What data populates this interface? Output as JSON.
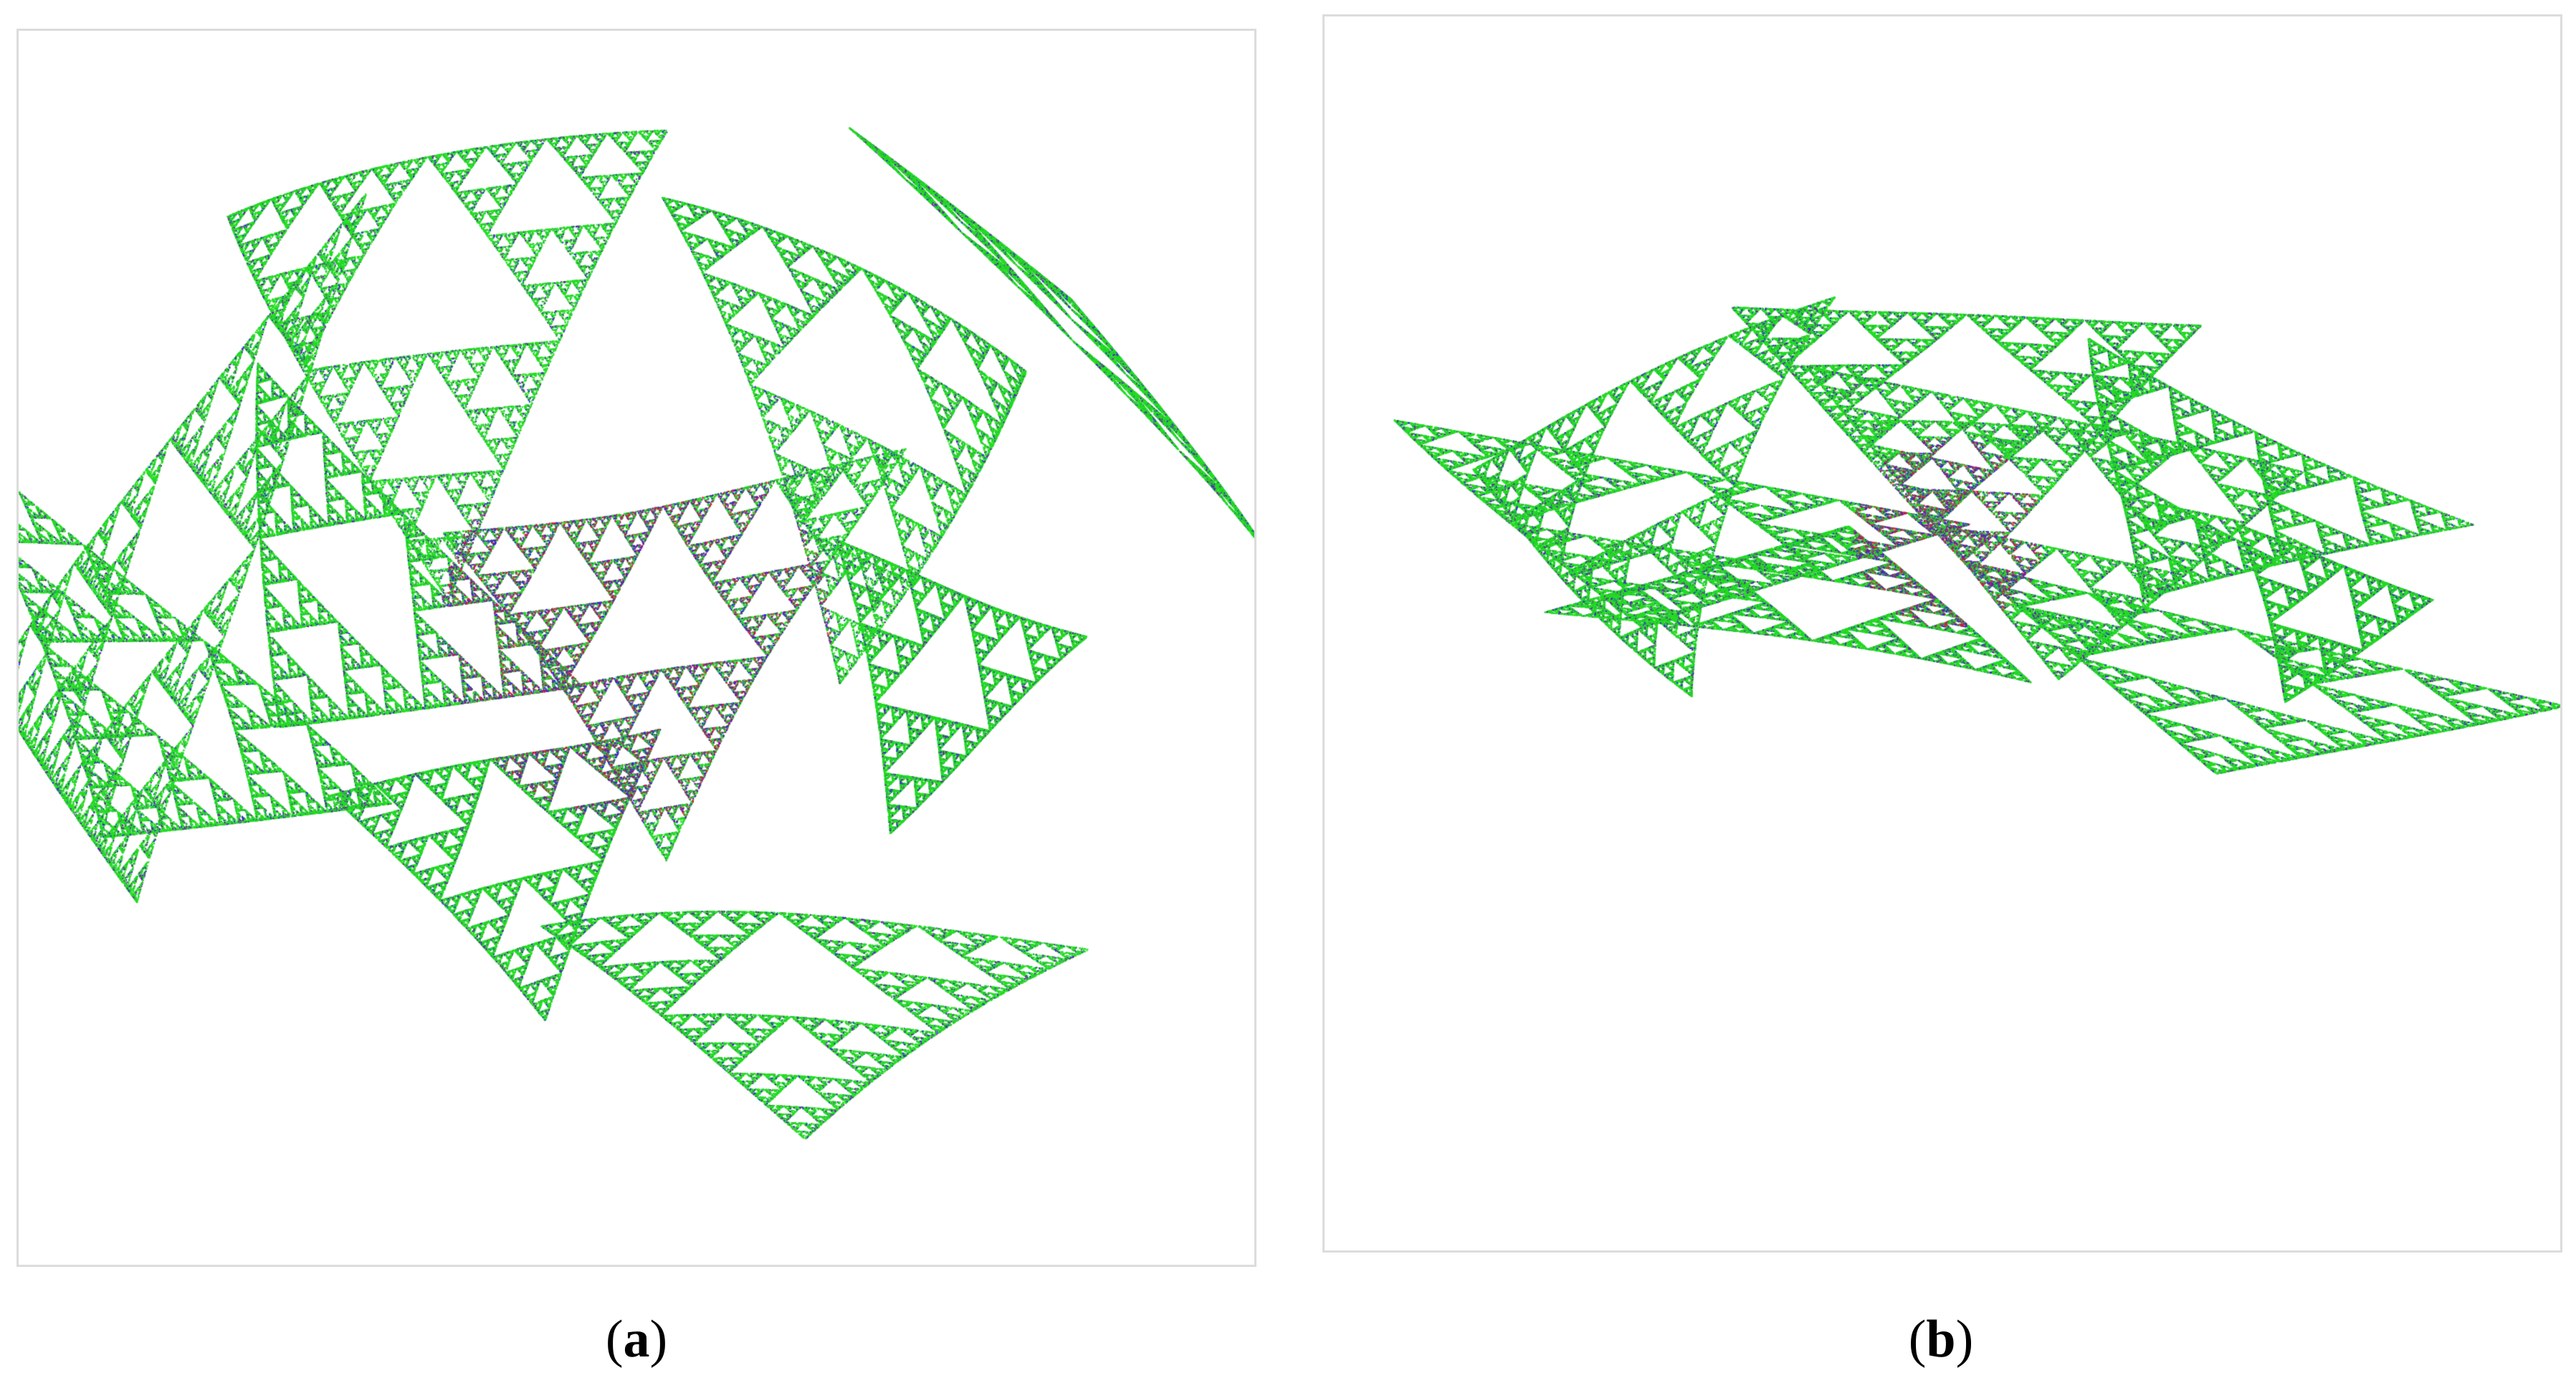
{
  "figure": {
    "panels": [
      {
        "id": "a",
        "caption_open": "(",
        "caption_letter": "a",
        "caption_close": ")"
      },
      {
        "id": "b",
        "caption_open": "(",
        "caption_letter": "b",
        "caption_close": ")"
      }
    ]
  },
  "colors": {
    "fractal_green": "#22dd22",
    "fractal_purple": "#6a1aa8",
    "fractal_blue": "#2a2ae0",
    "fractal_red": "#d81b3c",
    "panel_border": "#dcdcdc",
    "background": "#ffffff"
  }
}
